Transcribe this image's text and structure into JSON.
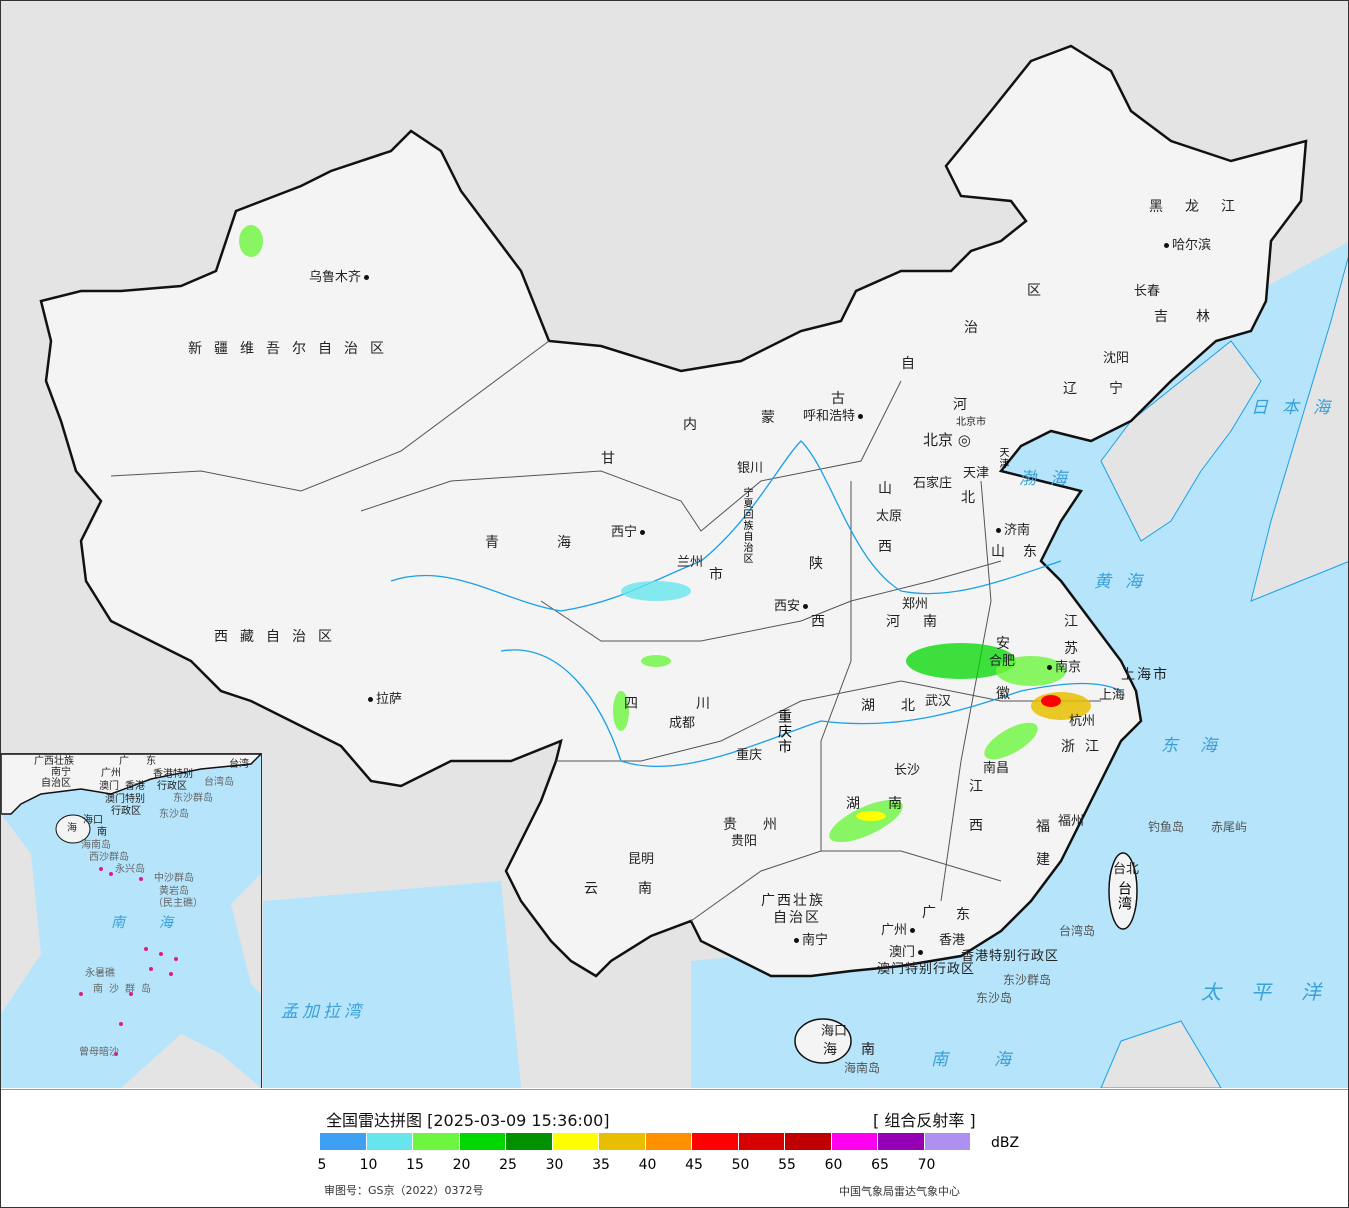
{
  "map": {
    "colors": {
      "land": "#f2f2f2",
      "outside": "#e4e4e4",
      "sea": "#b5e4fb",
      "border": "#111111",
      "river": "#1aa0e8"
    },
    "provinces": [
      "新疆维吾尔自治区",
      "西藏自治区",
      "青",
      "海",
      "甘",
      "内",
      "蒙",
      "古",
      "自",
      "治",
      "区",
      "黑龙江",
      "吉",
      "林",
      "辽",
      "宁",
      "河",
      "北",
      "山",
      "西",
      "山东",
      "河",
      "南",
      "陕",
      "西",
      "宁夏回族自治区",
      "四",
      "川",
      "重庆市",
      "贵州",
      "云",
      "南",
      "广西壮族",
      "自治区",
      "广",
      "东",
      "湖",
      "南",
      "湖",
      "北",
      "江",
      "西",
      "安",
      "徽",
      "江",
      "苏",
      "浙江",
      "福",
      "建",
      "台湾",
      "海",
      "南",
      "上海市",
      "香港特别行政区",
      "澳门特别行政区",
      "天津",
      "北京市",
      "市"
    ],
    "cities": [
      "乌鲁木齐",
      "拉萨",
      "西宁",
      "兰州",
      "银川",
      "呼和浩特",
      "北京",
      "天津",
      "石家庄",
      "太原",
      "济南",
      "郑州",
      "西安",
      "成都",
      "重庆",
      "贵阳",
      "昆明",
      "南宁",
      "广州",
      "澳门",
      "香港",
      "长沙",
      "武汉",
      "南昌",
      "福州",
      "杭州",
      "南京",
      "合肥",
      "上海",
      "台北",
      "哈尔滨",
      "长春",
      "沈阳",
      "海口"
    ],
    "seas": [
      "渤海",
      "黄海",
      "东海",
      "南海",
      "太平洋",
      "日本海",
      "孟加拉湾"
    ],
    "islands": [
      "钓鱼岛",
      "赤尾屿",
      "台湾岛",
      "东沙群岛",
      "东沙岛",
      "海南岛"
    ],
    "inset": [
      "广西壮族",
      "南宁",
      "自治区",
      "广",
      "东",
      "广州",
      "澳门",
      "香港",
      "香港特别",
      "行政区",
      "澳门特别",
      "行政区",
      "台湾",
      "台湾岛",
      "东沙群岛",
      "东沙岛",
      "海口",
      "海",
      "南",
      "海南岛",
      "西沙群岛",
      "永兴岛",
      "中沙群岛",
      "黄岩岛",
      "（民主礁）",
      "南",
      "海",
      "永暑礁",
      "南沙群岛",
      "曾母暗沙"
    ]
  },
  "legend": {
    "title": "全国雷达拼图 [2025-03-09 15:36:00]",
    "product": "[ 组合反射率 ]",
    "unit": "dBZ",
    "colors": [
      "#3f9ff2",
      "#66e6ec",
      "#6df53f",
      "#00d800",
      "#009000",
      "#ffff00",
      "#e6bf00",
      "#ff9000",
      "#ff0000",
      "#d60000",
      "#c00000",
      "#ff00f0",
      "#9600b4",
      "#ad90f0"
    ],
    "ticks": [
      "5",
      "10",
      "15",
      "20",
      "25",
      "30",
      "35",
      "40",
      "45",
      "50",
      "55",
      "60",
      "65",
      "70"
    ],
    "review_number": "审图号：GS京（2022）0372号",
    "organization": "中国气象局雷达气象中心"
  }
}
